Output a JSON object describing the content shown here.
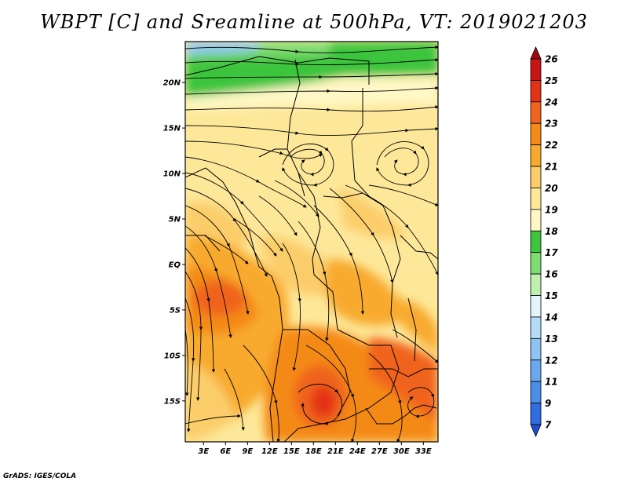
{
  "map": {
    "title": "WBPT [C] and Sreamline at 500hPa, VT: 2019021203",
    "variable": "WBPT",
    "units": "C",
    "level": "500hPa",
    "valid_time": "2019021203",
    "lat_labels": [
      "20N",
      "15N",
      "10N",
      "5N",
      "EQ",
      "5S",
      "10S",
      "15S"
    ],
    "lat_values": [
      20,
      15,
      10,
      5,
      0,
      -5,
      -10,
      -15
    ],
    "lon_labels": [
      "3E",
      "6E",
      "9E",
      "12E",
      "15E",
      "18E",
      "21E",
      "24E",
      "27E",
      "30E",
      "33E"
    ],
    "lon_values": [
      3,
      6,
      9,
      12,
      15,
      18,
      21,
      24,
      27,
      30,
      33
    ],
    "lon_range": [
      0.5,
      35
    ],
    "lat_range": [
      -19.5,
      24.5
    ]
  },
  "colorbar": {
    "levels": [
      "7",
      "9",
      "11",
      "12",
      "13",
      "14",
      "15",
      "16",
      "17",
      "18",
      "19",
      "20",
      "21",
      "22",
      "23",
      "24",
      "25",
      "26"
    ],
    "colors": [
      "#1f4fd0",
      "#2f6de0",
      "#4b8ee8",
      "#6aa8ef",
      "#8ec4f3",
      "#b4dcf6",
      "#e3f5fb",
      "#bff0b0",
      "#7fdc72",
      "#3ec43e",
      "#fff8c6",
      "#fde89a",
      "#fbcd6a",
      "#f8aa2e",
      "#f48a18",
      "#f0641c",
      "#e33217",
      "#c91414",
      "#a00a0a"
    ],
    "colors_legend": "19 colour bins from below 7 to above 26"
  },
  "credit": "GrADS: IGES/COLA"
}
